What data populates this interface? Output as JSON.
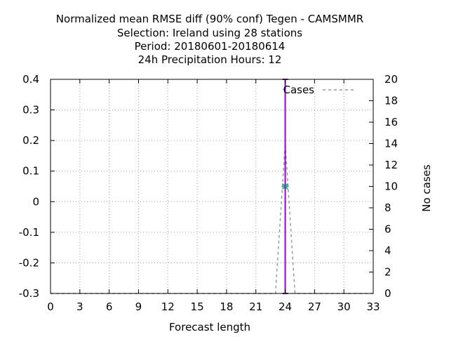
{
  "chart_data": {
    "type": "line",
    "title_lines": [
      "Normalized mean RMSE diff (90% conf) Tegen - CAMSMMR",
      "Selection: Ireland using    28 stations",
      "Period: 20180601-20180614",
      "24h Precipitation   Hours:  12"
    ],
    "xlabel": "Forecast length",
    "ylabel": "",
    "y2label": "No cases",
    "xlim": [
      0,
      33
    ],
    "ylim": [
      -0.3,
      0.4
    ],
    "y2lim": [
      0,
      20
    ],
    "xticks": [
      0,
      3,
      6,
      9,
      12,
      15,
      18,
      21,
      24,
      27,
      30,
      33
    ],
    "yticks": [
      -0.3,
      -0.2,
      -0.1,
      0,
      0.1,
      0.2,
      0.3,
      0.4
    ],
    "ytick_labels": [
      "-0.3",
      "-0.2",
      "-0.1",
      "0",
      "0.1",
      "0.2",
      "0.3",
      "0.4"
    ],
    "y2ticks": [
      0,
      2,
      4,
      6,
      8,
      10,
      12,
      14,
      16,
      18,
      20
    ],
    "grid": true,
    "legend": {
      "position": "top-right",
      "entries": [
        "Cases"
      ]
    },
    "series": [
      {
        "name": "Cases",
        "axis": "y2",
        "style": "dashed",
        "color": "#999999",
        "x": [
          0,
          23,
          24,
          25,
          33
        ],
        "values": [
          0,
          0,
          14,
          0,
          0
        ]
      },
      {
        "axis": "y",
        "style": "errorbar",
        "color": "#9400d3",
        "x": [
          24
        ],
        "values": [
          0.05
        ],
        "lower": [
          -0.3
        ],
        "upper": [
          0.4
        ]
      }
    ],
    "marker_color": "#009e73"
  }
}
